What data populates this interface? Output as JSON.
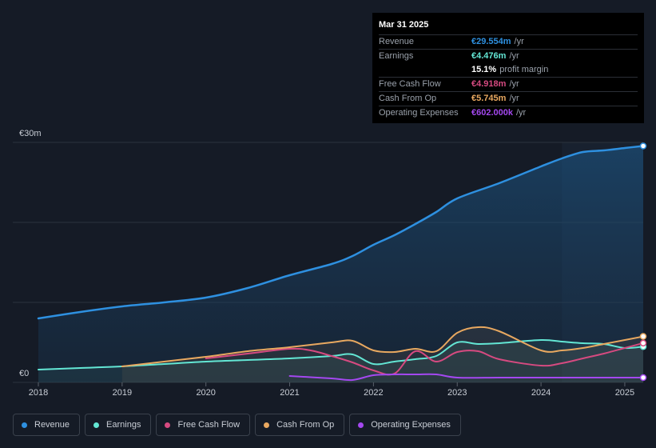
{
  "colors": {
    "revenue": "#2e90e0",
    "earnings": "#63e6d4",
    "free_cash_flow": "#d64a80",
    "cash_from_op": "#e8a860",
    "operating_expenses": "#a448f0"
  },
  "tooltip": {
    "date": "Mar 31 2025",
    "rows": [
      {
        "label": "Revenue",
        "value": "€29.554m",
        "unit": "/yr",
        "color": "#2e90e0"
      },
      {
        "label": "Earnings",
        "value": "€4.476m",
        "unit": "/yr",
        "color": "#63e6d4"
      },
      {
        "label": "",
        "value": "15.1%",
        "unit": "profit margin",
        "color": "#ffffff"
      },
      {
        "label": "Free Cash Flow",
        "value": "€4.918m",
        "unit": "/yr",
        "color": "#d64a80"
      },
      {
        "label": "Cash From Op",
        "value": "€5.745m",
        "unit": "/yr",
        "color": "#e8a860"
      },
      {
        "label": "Operating Expenses",
        "value": "€602.000k",
        "unit": "/yr",
        "color": "#a448f0"
      }
    ]
  },
  "legend": [
    {
      "label": "Revenue",
      "color": "#2e90e0"
    },
    {
      "label": "Earnings",
      "color": "#63e6d4"
    },
    {
      "label": "Free Cash Flow",
      "color": "#d64a80"
    },
    {
      "label": "Cash From Op",
      "color": "#e8a860"
    },
    {
      "label": "Operating Expenses",
      "color": "#a448f0"
    }
  ],
  "chart_data": {
    "type": "area",
    "title": "",
    "xlabel": "",
    "ylabel": "",
    "y_labels": [
      "€30m",
      "€0"
    ],
    "ylim": [
      0,
      30
    ],
    "xlim": [
      2017.9,
      2025.22
    ],
    "x_ticks": [
      2018,
      2019,
      2020,
      2021,
      2022,
      2023,
      2024,
      2025
    ],
    "x_tick_labels": [
      "2018",
      "2019",
      "2020",
      "2021",
      "2022",
      "2023",
      "2024",
      "2025"
    ],
    "highlight_from": 2024.25,
    "series": [
      {
        "name": "Revenue",
        "color": "#2e90e0",
        "fill": true,
        "end_marker": true,
        "points": [
          [
            2018.0,
            8.0
          ],
          [
            2018.5,
            8.8
          ],
          [
            2019.0,
            9.5
          ],
          [
            2019.5,
            10.0
          ],
          [
            2020.0,
            10.6
          ],
          [
            2020.5,
            11.8
          ],
          [
            2021.0,
            13.4
          ],
          [
            2021.5,
            14.8
          ],
          [
            2021.75,
            15.8
          ],
          [
            2022.0,
            17.2
          ],
          [
            2022.25,
            18.4
          ],
          [
            2022.5,
            19.8
          ],
          [
            2022.75,
            21.3
          ],
          [
            2023.0,
            23.0
          ],
          [
            2023.5,
            24.9
          ],
          [
            2024.0,
            27.0
          ],
          [
            2024.25,
            28.0
          ],
          [
            2024.5,
            28.8
          ],
          [
            2024.75,
            29.0
          ],
          [
            2025.0,
            29.3
          ],
          [
            2025.22,
            29.554
          ]
        ]
      },
      {
        "name": "Earnings",
        "color": "#63e6d4",
        "fill": true,
        "end_marker": true,
        "points": [
          [
            2018.0,
            1.6
          ],
          [
            2018.5,
            1.8
          ],
          [
            2019.0,
            2.0
          ],
          [
            2019.5,
            2.3
          ],
          [
            2020.0,
            2.6
          ],
          [
            2020.5,
            2.8
          ],
          [
            2021.0,
            3.0
          ],
          [
            2021.5,
            3.3
          ],
          [
            2021.75,
            3.5
          ],
          [
            2022.0,
            2.3
          ],
          [
            2022.25,
            2.6
          ],
          [
            2022.5,
            2.9
          ],
          [
            2022.75,
            3.3
          ],
          [
            2023.0,
            5.0
          ],
          [
            2023.25,
            4.8
          ],
          [
            2023.5,
            4.9
          ],
          [
            2024.0,
            5.3
          ],
          [
            2024.25,
            5.1
          ],
          [
            2024.5,
            4.9
          ],
          [
            2024.75,
            4.8
          ],
          [
            2025.0,
            4.3
          ],
          [
            2025.22,
            4.476
          ]
        ]
      },
      {
        "name": "Free Cash Flow",
        "color": "#d64a80",
        "fill": false,
        "end_marker": true,
        "points": [
          [
            2020.0,
            3.0
          ],
          [
            2020.5,
            3.6
          ],
          [
            2021.0,
            4.2
          ],
          [
            2021.25,
            4.0
          ],
          [
            2021.5,
            3.3
          ],
          [
            2021.75,
            2.5
          ],
          [
            2022.0,
            1.5
          ],
          [
            2022.25,
            1.1
          ],
          [
            2022.5,
            3.9
          ],
          [
            2022.75,
            2.6
          ],
          [
            2023.0,
            3.8
          ],
          [
            2023.25,
            3.9
          ],
          [
            2023.5,
            2.9
          ],
          [
            2024.0,
            2.1
          ],
          [
            2024.25,
            2.4
          ],
          [
            2024.5,
            3.0
          ],
          [
            2024.75,
            3.6
          ],
          [
            2025.0,
            4.3
          ],
          [
            2025.22,
            4.918
          ]
        ]
      },
      {
        "name": "Cash From Op",
        "color": "#e8a860",
        "fill": true,
        "end_marker": true,
        "points": [
          [
            2019.0,
            2.0
          ],
          [
            2019.5,
            2.6
          ],
          [
            2020.0,
            3.2
          ],
          [
            2020.5,
            3.9
          ],
          [
            2021.0,
            4.4
          ],
          [
            2021.5,
            5.0
          ],
          [
            2021.75,
            5.2
          ],
          [
            2022.0,
            4.0
          ],
          [
            2022.25,
            3.8
          ],
          [
            2022.5,
            4.2
          ],
          [
            2022.75,
            3.9
          ],
          [
            2023.0,
            6.2
          ],
          [
            2023.25,
            6.9
          ],
          [
            2023.5,
            6.4
          ],
          [
            2024.0,
            4.0
          ],
          [
            2024.25,
            4.0
          ],
          [
            2024.5,
            4.3
          ],
          [
            2024.75,
            4.8
          ],
          [
            2025.0,
            5.3
          ],
          [
            2025.22,
            5.745
          ]
        ]
      },
      {
        "name": "Operating Expenses",
        "color": "#a448f0",
        "fill": false,
        "end_marker": true,
        "points": [
          [
            2021.0,
            0.8
          ],
          [
            2021.5,
            0.5
          ],
          [
            2021.75,
            0.3
          ],
          [
            2022.0,
            0.9
          ],
          [
            2022.25,
            1.0
          ],
          [
            2022.5,
            1.0
          ],
          [
            2022.75,
            1.0
          ],
          [
            2023.0,
            0.6
          ],
          [
            2023.5,
            0.6
          ],
          [
            2024.0,
            0.6
          ],
          [
            2024.5,
            0.6
          ],
          [
            2025.0,
            0.6
          ],
          [
            2025.22,
            0.602
          ]
        ]
      }
    ]
  }
}
